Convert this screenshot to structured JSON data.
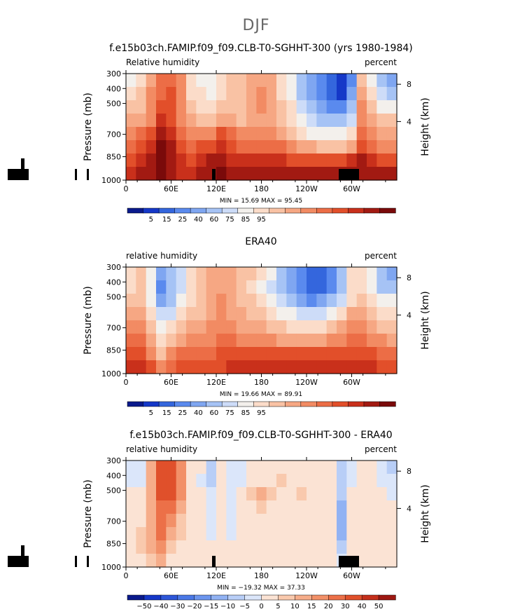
{
  "supertitle": "DJF",
  "chart_data": [
    {
      "type": "heatmap",
      "title": "f.e15b03ch.FAMIP.f09_f09.CLB-T0-SGHHT-300 (yrs 1980-1984)",
      "left_label": "Relative humidity",
      "right_label": "percent",
      "ylabel": "Pressure (mb)",
      "ylabel_right": "Height (km)",
      "x_ticks": [
        "0",
        "60E",
        "120E",
        "180",
        "120W",
        "60W"
      ],
      "y_ticks": [
        "300",
        "400",
        "500",
        "700",
        "850",
        "1000"
      ],
      "height_ticks": [
        "8",
        "4"
      ],
      "stats": "MIN =   15.69   MAX =   95.45",
      "colorbar_labels": [
        "5",
        "15",
        "25",
        "40",
        "60",
        "75",
        "85",
        "95"
      ],
      "colors": [
        "#0a1a8c",
        "#1538c8",
        "#3466dd",
        "#5a8aee",
        "#7fa6f1",
        "#a6c3f5",
        "#cddcf8",
        "#f3f0ec",
        "#fbdcc9",
        "#f9c2a4",
        "#f6a783",
        "#f28b63",
        "#ec6d46",
        "#e24f2a",
        "#c9301b",
        "#a21a12",
        "#7a0a0a"
      ],
      "values": [
        [
          7,
          8,
          10,
          12,
          12,
          11,
          8,
          7,
          7,
          8,
          9,
          9,
          10,
          10,
          10,
          8,
          7,
          5,
          4,
          3,
          2,
          1,
          3,
          9,
          7,
          5,
          4
        ],
        [
          8,
          9,
          11,
          12,
          13,
          11,
          8,
          8,
          7,
          8,
          9,
          9,
          10,
          11,
          10,
          8,
          7,
          5,
          4,
          3,
          2,
          1,
          4,
          10,
          8,
          6,
          5
        ],
        [
          9,
          9,
          11,
          13,
          13,
          11,
          9,
          8,
          8,
          9,
          9,
          9,
          10,
          11,
          10,
          9,
          8,
          6,
          5,
          4,
          3,
          3,
          5,
          11,
          9,
          7,
          7
        ],
        [
          10,
          10,
          11,
          14,
          13,
          11,
          10,
          9,
          9,
          10,
          10,
          9,
          10,
          10,
          10,
          9,
          8,
          7,
          6,
          5,
          5,
          5,
          6,
          11,
          10,
          9,
          9
        ],
        [
          11,
          12,
          13,
          15,
          14,
          12,
          11,
          11,
          11,
          13,
          12,
          11,
          11,
          11,
          11,
          10,
          9,
          8,
          7,
          7,
          7,
          7,
          8,
          12,
          11,
          10,
          10
        ],
        [
          12,
          13,
          14,
          16,
          15,
          13,
          12,
          13,
          13,
          14,
          13,
          12,
          12,
          12,
          12,
          12,
          11,
          10,
          10,
          9,
          9,
          9,
          10,
          13,
          12,
          11,
          11
        ],
        [
          13,
          14,
          15,
          16,
          15,
          14,
          13,
          14,
          15,
          15,
          14,
          14,
          14,
          14,
          14,
          14,
          13,
          13,
          13,
          13,
          13,
          13,
          14,
          15,
          14,
          13,
          13
        ],
        [
          14,
          15,
          15,
          16,
          15,
          14,
          14,
          15,
          15,
          16,
          15,
          15,
          15,
          15,
          15,
          15,
          15,
          15,
          15,
          15,
          15,
          15,
          15,
          15,
          15,
          15,
          15
        ]
      ],
      "topography": "cam"
    },
    {
      "type": "heatmap",
      "title": "ERA40",
      "left_label": "relative humidity",
      "right_label": "percent",
      "ylabel": "Pressure (mb)",
      "ylabel_right": "Height (km)",
      "x_ticks": [
        "0",
        "60E",
        "120E",
        "180",
        "120W",
        "60W"
      ],
      "y_ticks": [
        "300",
        "400",
        "500",
        "700",
        "850",
        "1000"
      ],
      "height_ticks": [
        "8",
        "4"
      ],
      "stats": "MIN =   19.66   MAX =   89.91",
      "colorbar_labels": [
        "5",
        "15",
        "25",
        "40",
        "60",
        "75",
        "85",
        "95"
      ],
      "colors": [
        "#0a1a8c",
        "#1538c8",
        "#3466dd",
        "#5a8aee",
        "#7fa6f1",
        "#a6c3f5",
        "#cddcf8",
        "#f3f0ec",
        "#fbdcc9",
        "#f9c2a4",
        "#f6a783",
        "#f28b63",
        "#ec6d46",
        "#e24f2a",
        "#c9301b",
        "#a21a12",
        "#7a0a0a"
      ],
      "values": [
        [
          8,
          9,
          7,
          4,
          5,
          6,
          8,
          9,
          10,
          10,
          10,
          9,
          9,
          8,
          7,
          5,
          4,
          3,
          2,
          2,
          3,
          5,
          8,
          8,
          7,
          5,
          4
        ],
        [
          8,
          9,
          7,
          3,
          5,
          6,
          8,
          9,
          10,
          10,
          10,
          9,
          8,
          7,
          6,
          5,
          4,
          3,
          2,
          2,
          3,
          5,
          8,
          8,
          7,
          5,
          5
        ],
        [
          9,
          9,
          7,
          4,
          5,
          7,
          8,
          9,
          10,
          11,
          10,
          9,
          9,
          8,
          7,
          6,
          5,
          4,
          3,
          4,
          5,
          6,
          8,
          9,
          8,
          7,
          7
        ],
        [
          10,
          10,
          8,
          6,
          6,
          8,
          9,
          9,
          10,
          11,
          10,
          10,
          9,
          9,
          8,
          7,
          7,
          6,
          6,
          6,
          7,
          8,
          10,
          10,
          9,
          8,
          8
        ],
        [
          11,
          11,
          9,
          7,
          8,
          9,
          10,
          10,
          11,
          11,
          11,
          10,
          10,
          10,
          9,
          9,
          8,
          8,
          8,
          8,
          9,
          10,
          11,
          11,
          10,
          9,
          9
        ],
        [
          12,
          12,
          10,
          8,
          9,
          10,
          11,
          11,
          11,
          12,
          12,
          11,
          11,
          11,
          11,
          10,
          10,
          10,
          10,
          10,
          11,
          11,
          12,
          12,
          11,
          11,
          10
        ],
        [
          13,
          13,
          11,
          9,
          11,
          12,
          12,
          12,
          12,
          13,
          13,
          13,
          13,
          13,
          13,
          13,
          13,
          13,
          13,
          13,
          13,
          13,
          13,
          13,
          13,
          12,
          12
        ],
        [
          14,
          14,
          13,
          11,
          12,
          13,
          13,
          13,
          13,
          13,
          14,
          14,
          14,
          14,
          14,
          14,
          14,
          14,
          14,
          14,
          14,
          14,
          14,
          14,
          14,
          13,
          13
        ]
      ],
      "topography": "none"
    },
    {
      "type": "heatmap",
      "title": "f.e15b03ch.FAMIP.f09_f09.CLB-T0-SGHHT-300 - ERA40",
      "left_label": "relative humidity",
      "right_label": "percent",
      "ylabel": "Pressure (mb)",
      "ylabel_right": "Height (km)",
      "x_ticks": [
        "0",
        "60E",
        "120E",
        "180",
        "120W",
        "60W"
      ],
      "y_ticks": [
        "300",
        "400",
        "500",
        "700",
        "850",
        "1000"
      ],
      "height_ticks": [
        "8",
        "4"
      ],
      "stats": "MIN = −19.32   MAX =   37.33",
      "colorbar_labels": [
        "−50",
        "−40",
        "−30",
        "−20",
        "−15",
        "−10",
        "−5",
        "0",
        "5",
        "10",
        "15",
        "20",
        "30",
        "40",
        "50"
      ],
      "colors": [
        "#0a1a8c",
        "#1538c8",
        "#2d56d8",
        "#4a78e6",
        "#6c95ee",
        "#91b2f3",
        "#b8cef7",
        "#dbe6fa",
        "#fbe3d4",
        "#f9c9ad",
        "#f6ad8a",
        "#f29068",
        "#ec7048",
        "#e0502b",
        "#c42f1b",
        "#9e1812"
      ],
      "values": [
        [
          7,
          7,
          10,
          13,
          13,
          11,
          8,
          8,
          6,
          8,
          7,
          7,
          8,
          8,
          8,
          8,
          8,
          8,
          8,
          8,
          8,
          6,
          7,
          8,
          8,
          7,
          6
        ],
        [
          7,
          7,
          10,
          13,
          13,
          11,
          8,
          7,
          6,
          8,
          7,
          7,
          8,
          8,
          8,
          9,
          8,
          8,
          8,
          8,
          8,
          6,
          7,
          8,
          8,
          7,
          7
        ],
        [
          8,
          8,
          10,
          13,
          13,
          11,
          8,
          8,
          7,
          8,
          7,
          8,
          9,
          10,
          9,
          8,
          8,
          9,
          8,
          8,
          8,
          6,
          8,
          8,
          8,
          8,
          7
        ],
        [
          8,
          8,
          10,
          12,
          12,
          10,
          8,
          8,
          7,
          8,
          7,
          8,
          8,
          9,
          8,
          8,
          8,
          8,
          8,
          8,
          8,
          5,
          8,
          8,
          8,
          8,
          8
        ],
        [
          8,
          8,
          10,
          12,
          11,
          9,
          8,
          8,
          7,
          8,
          7,
          8,
          8,
          8,
          8,
          8,
          8,
          8,
          8,
          8,
          8,
          5,
          8,
          8,
          8,
          8,
          8
        ],
        [
          8,
          9,
          10,
          12,
          10,
          9,
          8,
          8,
          7,
          8,
          7,
          8,
          8,
          8,
          8,
          8,
          8,
          8,
          8,
          8,
          8,
          5,
          8,
          8,
          8,
          8,
          8
        ],
        [
          8,
          9,
          10,
          11,
          9,
          8,
          8,
          8,
          8,
          8,
          8,
          8,
          8,
          8,
          8,
          8,
          8,
          8,
          8,
          8,
          8,
          6,
          8,
          8,
          8,
          8,
          8
        ],
        [
          8,
          8,
          9,
          10,
          8,
          8,
          8,
          8,
          8,
          8,
          8,
          8,
          8,
          8,
          8,
          8,
          8,
          8,
          8,
          8,
          8,
          7,
          8,
          8,
          8,
          8,
          8
        ]
      ],
      "topography": "cam"
    }
  ]
}
